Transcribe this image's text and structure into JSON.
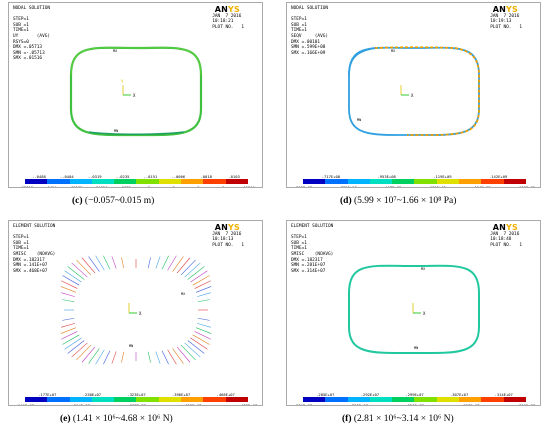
{
  "colorbar_colors": [
    "#0000c0",
    "#0070ff",
    "#00b4ff",
    "#00e0c0",
    "#00d060",
    "#80e000",
    "#e0e000",
    "#ffa000",
    "#ff4000",
    "#c00000"
  ],
  "panels": [
    {
      "info": "NODAL SOLUTION\n\nSTEP=1\nSUB =1\nTIME=1\nUY       (AVG)\nRSYS=0\nDMX =.05713\nSMN =-.05713\nSMX =.01516",
      "date": "JAN  7 2016",
      "time": "10:18:21",
      "plot": "PLOT NO.   1",
      "ticks_bottom": [
        "-.05713",
        "-.0404",
        "-.02565",
        "-.01694",
        "-.0081",
        "0",
        "0",
        "0",
        "0",
        ".01516"
      ],
      "ticks_top": [
        "-.0488",
        "-.0404",
        "-.0319",
        "-.0235",
        "-.0151",
        "-.0066",
        ".0018",
        ".0103"
      ],
      "caption_label": "(c)",
      "caption_text": " (−0.057~0.015 m)"
    },
    {
      "info": "NODAL SOLUTION\n\nSTEP=1\nSUB =1\nTIME=1\nSEQV     (AVG)\nDMX =.00101\nSMN =.599E+08\nSMX =.166E+09",
      "date": "JAN  7 2016",
      "time": "10:19:13",
      "plot": "PLOT NO.   1",
      "ticks_bottom": [
        ".599E+08",
        ".835E+08",
        ".107E+09",
        ".131E+09",
        ".154E+09",
        ".166E+09"
      ],
      "ticks_top": [
        ".717E+08",
        ".953E+08",
        ".119E+09",
        ".142E+09"
      ],
      "caption_label": "(d)",
      "caption_text": " (5.99 × 10⁷~1.66 × 10⁸ Pa)"
    },
    {
      "info": "ELEMENT SOLUTION\n\nSTEP=1\nSUB =1\nTIME=1\nSMISC    (NOAVG)\nDMX =.182317\nSMN =.141E+07\nSMX =.468E+07",
      "date": "JAN  7 2016",
      "time": "10:18:13",
      "plot": "PLOT NO.   1",
      "ticks_bottom": [
        ".141E+07",
        ".214E+07",
        ".287E+07",
        ".359E+07",
        ".432E+07"
      ],
      "ticks_top": [
        ".177E+07",
        ".250E+07",
        ".323E+07",
        ".396E+07",
        ".468E+07"
      ],
      "caption_label": "(e)",
      "caption_text": " (1.41 × 10⁶~4.68 × 10⁶ N)"
    },
    {
      "info": "ELEMENT SOLUTION\n\nSTEP=1\nSUB =1\nTIME=1\nSMISC    (NOAVG)\nDMX =.182317\nSMN =.281E+07\nSMX =.314E+07",
      "date": "JAN  7 2016",
      "time": "10:18:48",
      "plot": "PLOT NO.   1",
      "ticks_bottom": [
        ".281E+07",
        ".288E+07",
        ".296E+07",
        ".303E+07",
        ".311E+07"
      ],
      "ticks_top": [
        ".285E+07",
        ".292E+07",
        ".299E+07",
        ".307E+07",
        ".314E+07"
      ],
      "caption_label": "(f)",
      "caption_text": " (2.81 × 10⁶~3.14 × 10⁶ N)"
    }
  ],
  "logo_text": "AN",
  "logo_accent": "YS"
}
